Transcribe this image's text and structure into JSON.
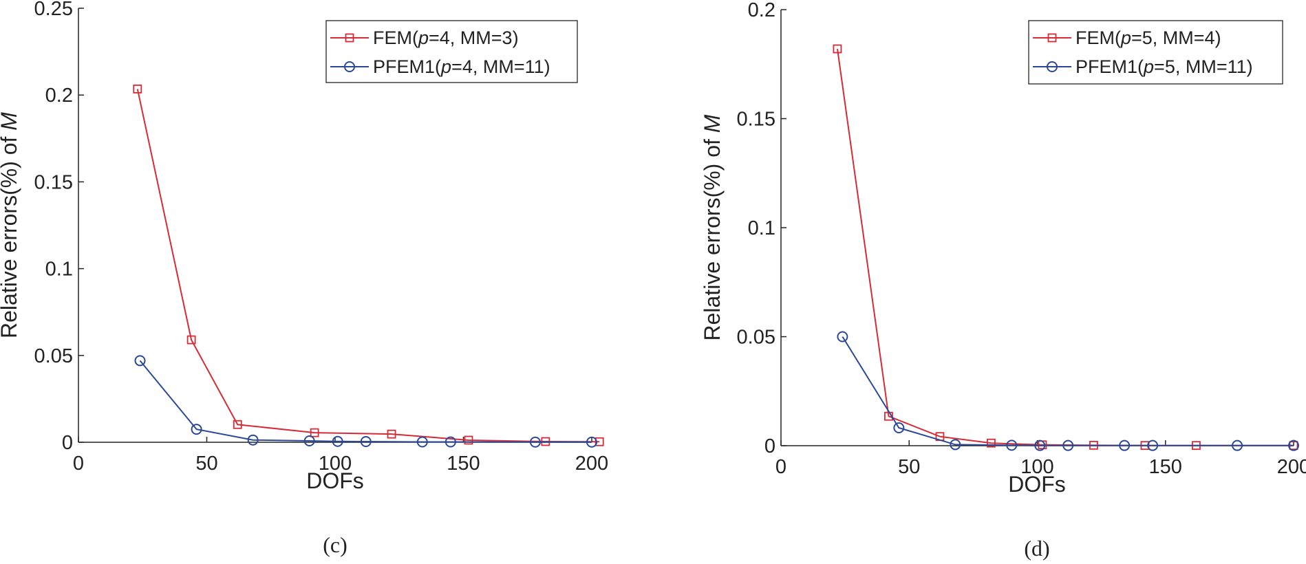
{
  "colors": {
    "fem": "#d62a35",
    "pfem": "#2b4898",
    "axis": "#222222"
  },
  "chart_data": [
    {
      "type": "line",
      "caption": "(c)",
      "xlabel": "DOFs",
      "ylabel": {
        "prefix": "Relative errors(%) of ",
        "symbol": "M"
      },
      "xlim": [
        0,
        200
      ],
      "ylim": [
        0,
        0.25
      ],
      "xticks": [
        0,
        50,
        100,
        150,
        200
      ],
      "yticks": [
        0,
        0.05,
        0.1,
        0.15,
        0.2,
        0.25
      ],
      "xtick_labels": [
        "0",
        "50",
        "100",
        "150",
        "200"
      ],
      "ytick_labels": [
        "0",
        "0.05",
        "0.1",
        "0.15",
        "0.2",
        "0.25"
      ],
      "grid": false,
      "legend_position": "top-right",
      "series": [
        {
          "name": "FEM(p=4, MM=3)",
          "legend": {
            "pre": "FEM(",
            "var": "p",
            "post": "=4, MM=3)"
          },
          "marker": "square",
          "color_key": "fem",
          "x": [
            23,
            44,
            62,
            92,
            122,
            152,
            182,
            203
          ],
          "y": [
            0.2035,
            0.059,
            0.0102,
            0.0055,
            0.0047,
            0.0012,
            0.0004,
            0.0003
          ]
        },
        {
          "name": "PFEM1(p=4, MM=11)",
          "legend": {
            "pre": "PFEM1(",
            "var": "p",
            "post": "=4, MM=11)"
          },
          "marker": "circle",
          "color_key": "pfem",
          "x": [
            24,
            46,
            68,
            90,
            101,
            112,
            134,
            145,
            178,
            200
          ],
          "y": [
            0.047,
            0.0075,
            0.0013,
            0.0008,
            0.0005,
            0.0004,
            0.0002,
            0.0002,
            0.0001,
            0.0001
          ]
        }
      ]
    },
    {
      "type": "line",
      "caption": "(d)",
      "xlabel": "DOFs",
      "ylabel": {
        "prefix": "Relative errors(%) of ",
        "symbol": "M"
      },
      "xlim": [
        0,
        200
      ],
      "ylim": [
        0,
        0.2
      ],
      "xticks": [
        0,
        50,
        100,
        150,
        200
      ],
      "yticks": [
        0,
        0.05,
        0.1,
        0.15,
        0.2
      ],
      "xtick_labels": [
        "0",
        "50",
        "100",
        "150",
        "200"
      ],
      "ytick_labels": [
        "0",
        "0.05",
        "0.1",
        "0.15",
        "0.2"
      ],
      "grid": false,
      "legend_position": "top-right",
      "series": [
        {
          "name": "FEM(p=5, MM=4)",
          "legend": {
            "pre": "FEM(",
            "var": "p",
            "post": "=5, MM=4)"
          },
          "marker": "square",
          "color_key": "fem",
          "x": [
            22,
            42,
            62,
            82,
            102,
            122,
            142,
            162,
            200
          ],
          "y": [
            0.182,
            0.0135,
            0.0042,
            0.0012,
            0.0004,
            0.0002,
            0.0001,
            0.0001,
            0.0001
          ]
        },
        {
          "name": "PFEM1(p=5, MM=11)",
          "legend": {
            "pre": "PFEM1(",
            "var": "p",
            "post": "=5, MM=11)"
          },
          "marker": "circle",
          "color_key": "pfem",
          "x": [
            24,
            46,
            68,
            90,
            101,
            112,
            134,
            145,
            178,
            200
          ],
          "y": [
            0.05,
            0.0082,
            0.0005,
            0.0002,
            0.0001,
            0.0001,
            0.0001,
            0.0001,
            0.0001,
            0.0001
          ]
        }
      ]
    }
  ]
}
